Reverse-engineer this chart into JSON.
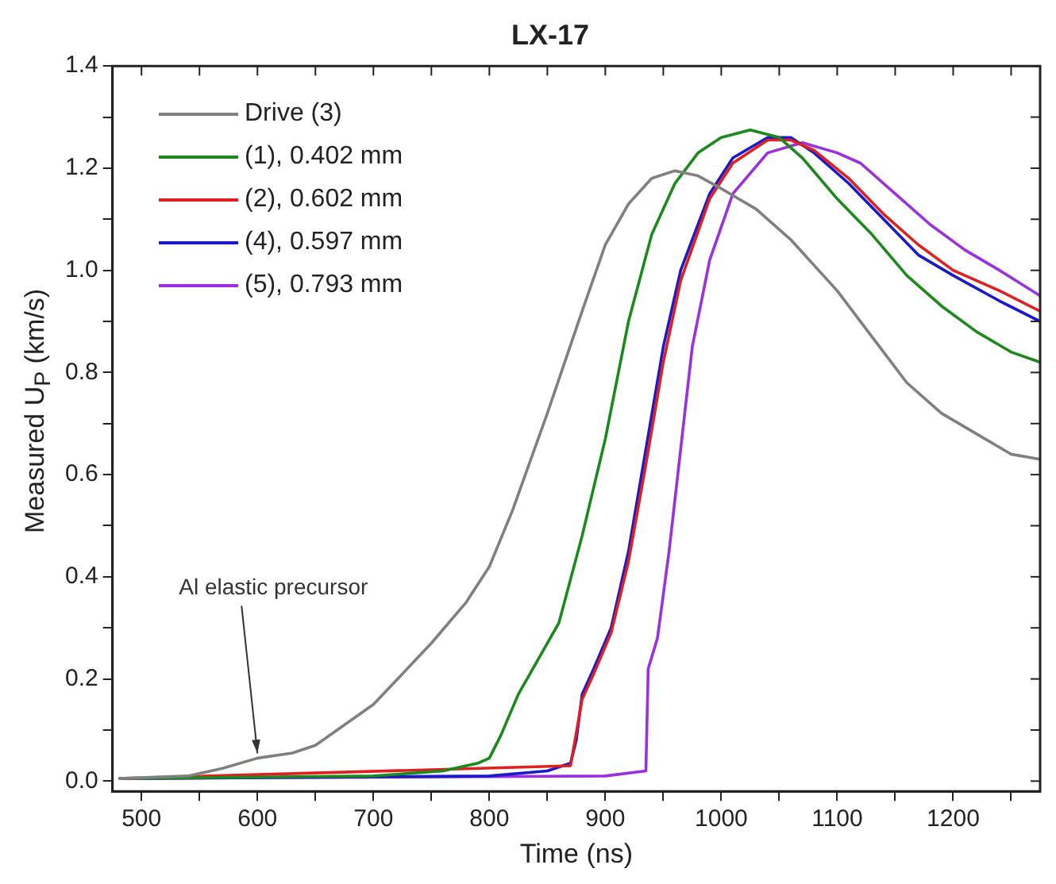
{
  "chart_data": {
    "type": "line",
    "title": "LX-17",
    "xlabel": "Time (ns)",
    "ylabel": "Measured U$_{P}$ (km/s)",
    "xlim": [
      475,
      1275
    ],
    "ylim": [
      -0.02,
      1.4
    ],
    "xticks": [
      500,
      {
        "value": 550,
        "label": null
      },
      600,
      {
        "value": 650,
        "label": null
      },
      700,
      {
        "value": 750,
        "label": null
      },
      800,
      {
        "value": 850,
        "label": null
      },
      900,
      {
        "value": 950,
        "label": null
      },
      1000,
      {
        "value": 1050,
        "label": null
      },
      1100,
      {
        "value": 1150,
        "label": null
      },
      1200,
      {
        "value": 1250,
        "label": null
      }
    ],
    "yticks": [
      {
        "value": 0,
        "label": "0.0"
      },
      {
        "value": 0.1,
        "label": null
      },
      0.2,
      {
        "value": 0.3,
        "label": null
      },
      0.4,
      {
        "value": 0.5,
        "label": null
      },
      0.6,
      {
        "value": 0.7,
        "label": null
      },
      0.8,
      {
        "value": 0.9,
        "label": null
      },
      {
        "value": 1,
        "label": "1.0"
      },
      {
        "value": 1.1,
        "label": null
      },
      1.2,
      {
        "value": 1.3,
        "label": null
      },
      1.4
    ],
    "grid": false,
    "legend": "top left",
    "marker": "none",
    "line_style": "solid",
    "annotations": [
      {
        "text": "Al elastic precursor",
        "x": 600,
        "y": 0.045
      }
    ],
    "series": [
      {
        "name": "Drive (3)",
        "color": "#808080",
        "x": [
          480,
          540,
          570,
          600,
          630,
          650,
          700,
          750,
          780,
          800,
          820,
          850,
          880,
          900,
          920,
          940,
          960,
          980,
          1000,
          1030,
          1060,
          1100,
          1130,
          1160,
          1190,
          1220,
          1250,
          1275
        ],
        "values": [
          0.005,
          0.01,
          0.025,
          0.045,
          0.055,
          0.07,
          0.15,
          0.27,
          0.35,
          0.42,
          0.53,
          0.72,
          0.92,
          1.05,
          1.13,
          1.18,
          1.195,
          1.185,
          1.16,
          1.12,
          1.06,
          0.96,
          0.87,
          0.78,
          0.72,
          0.68,
          0.64,
          0.63
        ]
      },
      {
        "name": "(1), 0.402 mm",
        "color": "#1a8a1a",
        "x": [
          480,
          700,
          760,
          790,
          800,
          810,
          825,
          850,
          860,
          880,
          900,
          920,
          940,
          960,
          980,
          1000,
          1025,
          1050,
          1070,
          1100,
          1130,
          1160,
          1190,
          1220,
          1250,
          1275
        ],
        "values": [
          0.005,
          0.01,
          0.02,
          0.035,
          0.045,
          0.09,
          0.17,
          0.27,
          0.31,
          0.48,
          0.67,
          0.9,
          1.07,
          1.17,
          1.23,
          1.26,
          1.275,
          1.26,
          1.22,
          1.14,
          1.07,
          0.99,
          0.93,
          0.88,
          0.84,
          0.82
        ]
      },
      {
        "name": "(2), 0.602 mm",
        "color": "#e02020",
        "x": [
          480,
          870,
          880,
          890,
          905,
          920,
          935,
          950,
          965,
          990,
          1010,
          1040,
          1060,
          1080,
          1110,
          1140,
          1170,
          1200,
          1240,
          1275
        ],
        "values": [
          0.005,
          0.03,
          0.16,
          0.21,
          0.29,
          0.43,
          0.62,
          0.82,
          0.98,
          1.14,
          1.21,
          1.255,
          1.255,
          1.235,
          1.18,
          1.11,
          1.05,
          1.0,
          0.96,
          0.92
        ]
      },
      {
        "name": "(4), 0.597 mm",
        "color": "#1a1acc",
        "x": [
          480,
          800,
          850,
          870,
          875,
          880,
          890,
          905,
          920,
          935,
          950,
          965,
          990,
          1010,
          1040,
          1060,
          1080,
          1110,
          1140,
          1170,
          1200,
          1240,
          1275
        ],
        "values": [
          0.005,
          0.01,
          0.02,
          0.035,
          0.08,
          0.17,
          0.22,
          0.3,
          0.45,
          0.65,
          0.85,
          1.0,
          1.15,
          1.22,
          1.26,
          1.26,
          1.23,
          1.17,
          1.1,
          1.03,
          0.99,
          0.94,
          0.9
        ]
      },
      {
        "name": "(5), 0.793 mm",
        "color": "#9a30e0",
        "x": [
          480,
          900,
          935,
          937,
          945,
          955,
          965,
          975,
          990,
          1010,
          1040,
          1070,
          1100,
          1120,
          1150,
          1180,
          1210,
          1240,
          1275
        ],
        "values": [
          0.005,
          0.01,
          0.02,
          0.22,
          0.28,
          0.45,
          0.65,
          0.85,
          1.02,
          1.15,
          1.23,
          1.25,
          1.23,
          1.21,
          1.15,
          1.09,
          1.04,
          1.0,
          0.95
        ]
      }
    ]
  }
}
